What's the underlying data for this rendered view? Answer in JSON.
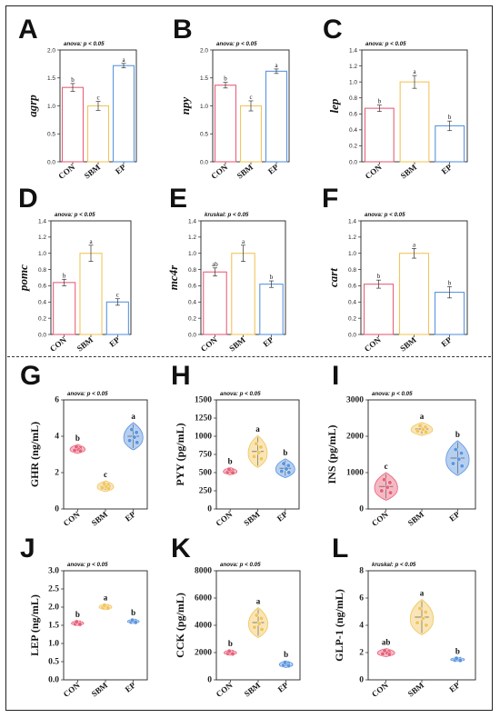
{
  "colors": {
    "CON": "#e8617a",
    "SBM": "#f2c55c",
    "EP": "#5b95e0"
  },
  "chart_data": [
    {
      "type": "bar",
      "panel": "A",
      "stat": "anova: p < 0.05",
      "ylabel": "agrp",
      "categories": [
        "CON",
        "SBM",
        "EP"
      ],
      "values": [
        1.33,
        1.0,
        1.72
      ],
      "errors": [
        0.07,
        0.08,
        0.04
      ],
      "letters": [
        "b",
        "c",
        "a"
      ],
      "ylim": [
        0,
        2.0
      ],
      "yticks": [
        "0.0",
        "0.5",
        "1.0",
        "1.5",
        "2.0"
      ]
    },
    {
      "type": "bar",
      "panel": "B",
      "stat": "anova: p < 0.05",
      "ylabel": "npy",
      "categories": [
        "CON",
        "SBM",
        "EP"
      ],
      "values": [
        1.37,
        1.0,
        1.62
      ],
      "errors": [
        0.05,
        0.09,
        0.04
      ],
      "letters": [
        "b",
        "c",
        "a"
      ],
      "ylim": [
        0,
        2.0
      ],
      "yticks": [
        "0.0",
        "0.5",
        "1.0",
        "1.5",
        "2.0"
      ]
    },
    {
      "type": "bar",
      "panel": "C",
      "stat": "anova: p < 0.05",
      "ylabel": "lep",
      "categories": [
        "CON",
        "SBM",
        "EP"
      ],
      "values": [
        0.67,
        1.0,
        0.45
      ],
      "errors": [
        0.04,
        0.08,
        0.06
      ],
      "letters": [
        "b",
        "a",
        "b"
      ],
      "ylim": [
        0,
        1.4
      ],
      "yticks": [
        "0.0",
        "0.2",
        "0.4",
        "0.6",
        "0.8",
        "1.0",
        "1.2",
        "1.4"
      ]
    },
    {
      "type": "bar",
      "panel": "D",
      "stat": "anova: p < 0.05",
      "ylabel": "pomc",
      "categories": [
        "CON",
        "SBM",
        "EP"
      ],
      "values": [
        0.64,
        1.0,
        0.4
      ],
      "errors": [
        0.04,
        0.1,
        0.04
      ],
      "letters": [
        "b",
        "a",
        "c"
      ],
      "ylim": [
        0,
        1.4
      ],
      "yticks": [
        "0.0",
        "0.2",
        "0.4",
        "0.6",
        "0.8",
        "1.0",
        "1.2",
        "1.4"
      ]
    },
    {
      "type": "bar",
      "panel": "E",
      "stat": "kruskal: p < 0.05",
      "ylabel": "mc4r",
      "categories": [
        "CON",
        "SBM",
        "EP"
      ],
      "values": [
        0.77,
        1.0,
        0.62
      ],
      "errors": [
        0.05,
        0.1,
        0.04
      ],
      "letters": [
        "ab",
        "a",
        "b"
      ],
      "ylim": [
        0,
        1.4
      ],
      "yticks": [
        "0.0",
        "0.2",
        "0.4",
        "0.6",
        "0.8",
        "1.0",
        "1.2",
        "1.4"
      ]
    },
    {
      "type": "bar",
      "panel": "F",
      "stat": "anova: p < 0.05",
      "ylabel": "cart",
      "categories": [
        "CON",
        "SBM",
        "EP"
      ],
      "values": [
        0.62,
        1.0,
        0.52
      ],
      "errors": [
        0.05,
        0.06,
        0.07
      ],
      "letters": [
        "b",
        "a",
        "b"
      ],
      "ylim": [
        0,
        1.4
      ],
      "yticks": [
        "0.0",
        "0.2",
        "0.4",
        "0.6",
        "0.8",
        "1.0",
        "1.2",
        "1.4"
      ]
    },
    {
      "type": "violin",
      "panel": "G",
      "stat": "anova: p < 0.05",
      "ylabel": "GHR (ng/mL)",
      "categories": [
        "CON",
        "SBM",
        "EP"
      ],
      "values": [
        3.3,
        1.25,
        4.0
      ],
      "spread": [
        0.25,
        0.3,
        0.75
      ],
      "letters": [
        "b",
        "c",
        "a"
      ],
      "ylim": [
        0,
        6
      ],
      "yticks": [
        "0",
        "2",
        "4",
        "6"
      ]
    },
    {
      "type": "violin",
      "panel": "H",
      "stat": "anova: p < 0.05",
      "ylabel": "PYY (pg/mL)",
      "categories": [
        "CON",
        "SBM",
        "EP"
      ],
      "values": [
        520,
        790,
        560
      ],
      "spread": [
        50,
        220,
        130
      ],
      "letters": [
        "b",
        "a",
        "b"
      ],
      "ylim": [
        0,
        1500
      ],
      "yticks": [
        "0",
        "250",
        "500",
        "750",
        "1000",
        "1250",
        "1500"
      ]
    },
    {
      "type": "violin",
      "panel": "I",
      "stat": "anova: p < 0.05",
      "ylabel": "INS (pg/mL)",
      "categories": [
        "CON",
        "SBM",
        "EP"
      ],
      "values": [
        620,
        2200,
        1400
      ],
      "spread": [
        380,
        180,
        480
      ],
      "letters": [
        "c",
        "a",
        "b"
      ],
      "ylim": [
        0,
        3000
      ],
      "yticks": [
        "0",
        "1000",
        "2000",
        "3000"
      ]
    },
    {
      "type": "violin",
      "panel": "J",
      "stat": "anova: p < 0.05",
      "ylabel": "LEP (ng/mL)",
      "categories": [
        "CON",
        "SBM",
        "EP"
      ],
      "values": [
        1.56,
        2.01,
        1.61
      ],
      "spread": [
        0.07,
        0.08,
        0.06
      ],
      "letters": [
        "b",
        "a",
        "b"
      ],
      "ylim": [
        0,
        3.0
      ],
      "yticks": [
        "0.0",
        "0.5",
        "1.0",
        "1.5",
        "2.0",
        "2.5",
        "3.0"
      ]
    },
    {
      "type": "violin",
      "panel": "K",
      "stat": "anova: p < 0.05",
      "ylabel": "CCK (pg/mL)",
      "categories": [
        "CON",
        "SBM",
        "EP"
      ],
      "values": [
        2000,
        4200,
        1150
      ],
      "spread": [
        200,
        1100,
        250
      ],
      "letters": [
        "b",
        "a",
        "b"
      ],
      "ylim": [
        0,
        8000
      ],
      "yticks": [
        "0",
        "2000",
        "4000",
        "6000",
        "8000"
      ]
    },
    {
      "type": "violin",
      "panel": "L",
      "stat": "kruskal: p < 0.05",
      "ylabel": "GLP-1 (ng/mL)",
      "categories": [
        "CON",
        "SBM",
        "EP"
      ],
      "values": [
        2.0,
        4.6,
        1.5
      ],
      "spread": [
        0.3,
        1.3,
        0.15
      ],
      "letters": [
        "ab",
        "a",
        "b"
      ],
      "ylim": [
        0,
        8
      ],
      "yticks": [
        "0",
        "2",
        "4",
        "6",
        "8"
      ]
    }
  ]
}
